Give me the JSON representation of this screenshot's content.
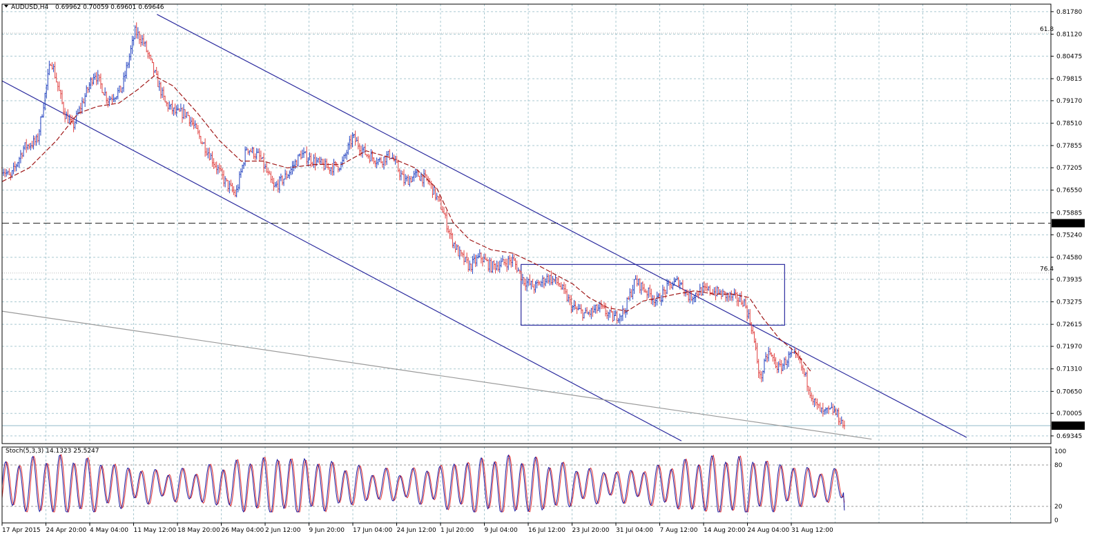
{
  "header": {
    "symbol": "AUDUSD,H4",
    "ohlc": "0.69962 0.70059 0.69601 0.69646"
  },
  "stoch": {
    "label": "Stoch(5,3,3) 14.1323 25.5247",
    "levels": [
      "100",
      "80",
      "20",
      "0"
    ]
  },
  "colors": {
    "bull": "#1f3fbf",
    "bear": "#e04040",
    "ma": "#a01818",
    "trend": "#2b2b9e",
    "grid": "#a8c8d0",
    "stoch_main": "#1a1aa0",
    "stoch_signal": "#e03030"
  },
  "chart_data": {
    "type": "candlestick",
    "symbol": "AUDUSD",
    "timeframe": "H4",
    "price_ticks": [
      "0.81780",
      "0.81120",
      "0.80475",
      "0.79815",
      "0.79170",
      "0.78510",
      "0.77855",
      "0.77205",
      "0.76550",
      "0.75885",
      "0.75240",
      "0.74580",
      "0.73935",
      "0.73275",
      "0.72615",
      "0.71970",
      "0.71310",
      "0.70650",
      "0.70005",
      "0.69345"
    ],
    "current_price": "0.69646",
    "marked_level": "0.75580",
    "fib_labels": [
      {
        "text": "61.8",
        "price": 0.8115
      },
      {
        "text": "76.4",
        "price": 0.7412
      }
    ],
    "time_labels": [
      "17 Apr 2015",
      "24 Apr 20:00",
      "4 May 04:00",
      "11 May 12:00",
      "18 May 20:00",
      "26 May 04:00",
      "2 Jun 12:00",
      "9 Jun 20:00",
      "17 Jun 04:00",
      "24 Jun 12:00",
      "1 Jul 20:00",
      "9 Jul 04:00",
      "16 Jul 12:00",
      "23 Jul 20:00",
      "31 Jul 04:00",
      "7 Aug 12:00",
      "14 Aug 20:00",
      "24 Aug 04:00",
      "31 Aug 12:00"
    ],
    "price_path": [
      [
        0,
        0.772
      ],
      [
        0.3,
        0.769
      ],
      [
        0.8,
        0.778
      ],
      [
        1.3,
        0.78
      ],
      [
        1.8,
        0.804
      ],
      [
        2.3,
        0.788
      ],
      [
        2.6,
        0.784
      ],
      [
        3.0,
        0.792
      ],
      [
        3.4,
        0.8
      ],
      [
        3.9,
        0.792
      ],
      [
        4.4,
        0.795
      ],
      [
        4.9,
        0.812
      ],
      [
        5.2,
        0.809
      ],
      [
        5.6,
        0.8
      ],
      [
        6.0,
        0.791
      ],
      [
        6.4,
        0.788
      ],
      [
        6.8,
        0.788
      ],
      [
        7.2,
        0.782
      ],
      [
        7.7,
        0.775
      ],
      [
        8.2,
        0.768
      ],
      [
        8.6,
        0.764
      ],
      [
        9.0,
        0.778
      ],
      [
        9.5,
        0.775
      ],
      [
        10.0,
        0.766
      ],
      [
        10.5,
        0.77
      ],
      [
        11.0,
        0.776
      ],
      [
        11.5,
        0.774
      ],
      [
        12.0,
        0.772
      ],
      [
        12.5,
        0.773
      ],
      [
        12.9,
        0.781
      ],
      [
        13.4,
        0.776
      ],
      [
        13.9,
        0.774
      ],
      [
        14.3,
        0.776
      ],
      [
        14.8,
        0.768
      ],
      [
        15.3,
        0.77
      ],
      [
        15.7,
        0.768
      ],
      [
        16.2,
        0.76
      ],
      [
        16.5,
        0.752
      ],
      [
        16.8,
        0.747
      ],
      [
        17.2,
        0.743
      ],
      [
        17.6,
        0.746
      ],
      [
        18.0,
        0.743
      ],
      [
        18.4,
        0.744
      ],
      [
        18.8,
        0.745
      ],
      [
        19.2,
        0.739
      ],
      [
        19.6,
        0.737
      ],
      [
        20.1,
        0.74
      ],
      [
        20.5,
        0.738
      ],
      [
        21.0,
        0.731
      ],
      [
        21.5,
        0.729
      ],
      [
        22.0,
        0.731
      ],
      [
        22.5,
        0.728
      ],
      [
        22.9,
        0.73
      ],
      [
        23.3,
        0.739
      ],
      [
        23.7,
        0.736
      ],
      [
        24.1,
        0.733
      ],
      [
        24.5,
        0.737
      ],
      [
        24.9,
        0.739
      ],
      [
        25.3,
        0.734
      ],
      [
        25.7,
        0.736
      ],
      [
        26.1,
        0.736
      ],
      [
        26.5,
        0.735
      ],
      [
        26.9,
        0.734
      ],
      [
        27.3,
        0.733
      ],
      [
        27.6,
        0.725
      ],
      [
        27.9,
        0.71
      ],
      [
        28.2,
        0.718
      ],
      [
        28.6,
        0.713
      ],
      [
        29.0,
        0.717
      ],
      [
        29.3,
        0.716
      ],
      [
        29.6,
        0.71
      ],
      [
        29.9,
        0.703
      ],
      [
        30.2,
        0.7
      ],
      [
        30.6,
        0.701
      ],
      [
        31.0,
        0.6964
      ]
    ],
    "moving_average": [
      [
        0,
        0.768
      ],
      [
        1.0,
        0.772
      ],
      [
        2.0,
        0.78
      ],
      [
        2.8,
        0.788
      ],
      [
        3.5,
        0.79
      ],
      [
        4.3,
        0.791
      ],
      [
        5.0,
        0.795
      ],
      [
        5.6,
        0.799
      ],
      [
        6.3,
        0.796
      ],
      [
        7.2,
        0.788
      ],
      [
        8.0,
        0.78
      ],
      [
        8.8,
        0.774
      ],
      [
        9.6,
        0.774
      ],
      [
        10.5,
        0.772
      ],
      [
        11.5,
        0.773
      ],
      [
        12.5,
        0.773
      ],
      [
        13.4,
        0.777
      ],
      [
        14.3,
        0.775
      ],
      [
        15.2,
        0.772
      ],
      [
        16.0,
        0.766
      ],
      [
        16.6,
        0.756
      ],
      [
        17.2,
        0.751
      ],
      [
        18.0,
        0.748
      ],
      [
        18.8,
        0.747
      ],
      [
        19.6,
        0.744
      ],
      [
        20.3,
        0.741
      ],
      [
        21.0,
        0.738
      ],
      [
        21.6,
        0.734
      ],
      [
        22.3,
        0.731
      ],
      [
        23.0,
        0.73
      ],
      [
        23.6,
        0.733
      ],
      [
        24.2,
        0.734
      ],
      [
        24.8,
        0.735
      ],
      [
        25.5,
        0.736
      ],
      [
        26.2,
        0.735
      ],
      [
        26.9,
        0.735
      ],
      [
        27.5,
        0.734
      ],
      [
        28.0,
        0.728
      ],
      [
        28.6,
        0.722
      ],
      [
        29.2,
        0.718
      ],
      [
        29.8,
        0.712
      ]
    ],
    "x_range": [
      0,
      38.6
    ],
    "y_range": [
      0.6912,
      0.82
    ],
    "trendlines": [
      {
        "from": [
          5.7,
          0.817
        ],
        "to": [
          35.5,
          0.693
        ]
      },
      {
        "from": [
          0,
          0.7975
        ],
        "to": [
          25.0,
          0.692
        ]
      },
      {
        "from": [
          0,
          0.73
        ],
        "to": [
          32.0,
          0.6925
        ]
      }
    ],
    "consolidation_box": {
      "x": [
        19.1,
        28.8
      ],
      "price": [
        0.7259,
        0.7437
      ]
    },
    "stochastic": {
      "ylim": [
        0,
        100
      ],
      "levels": [
        20,
        80
      ],
      "cycle_count": 62,
      "range": [
        12,
        90
      ],
      "last_main": 14.1323,
      "last_signal": 25.5247
    }
  }
}
